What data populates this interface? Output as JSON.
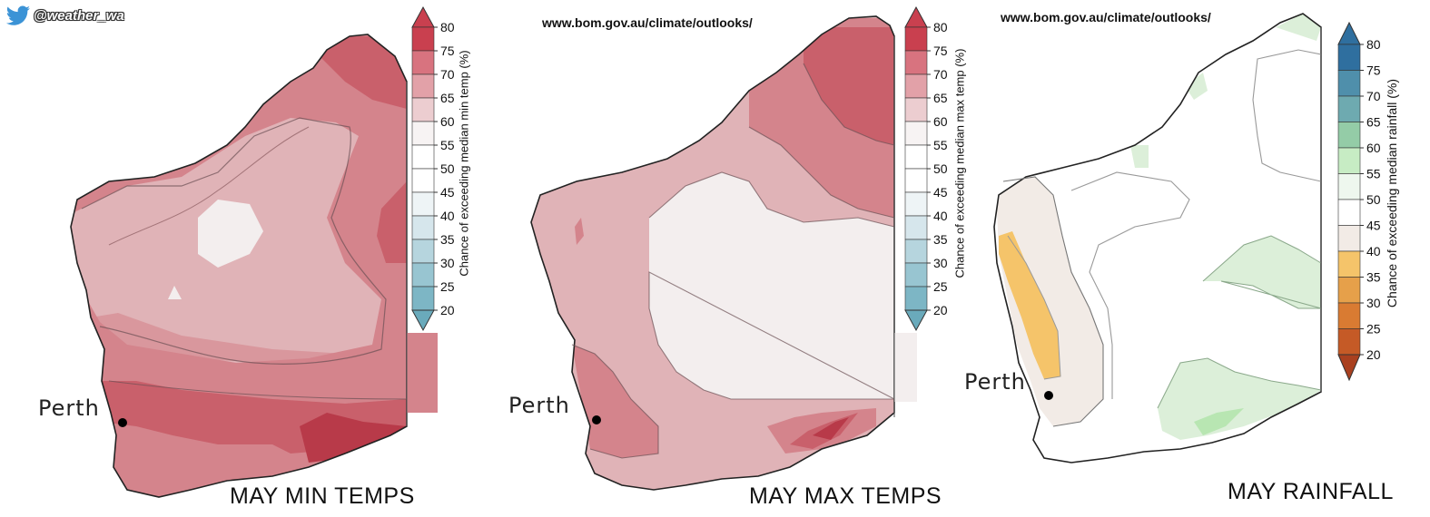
{
  "handle": {
    "text": "@weather_wa",
    "icon": "bird-icon"
  },
  "legend_ticks": [
    "80",
    "75",
    "70",
    "65",
    "60",
    "55",
    "50",
    "45",
    "40",
    "35",
    "30",
    "25",
    "20"
  ],
  "panels": [
    {
      "id": "min",
      "title": "MAY MIN TEMPS",
      "url": "",
      "legend_label": "Chance of exceeding median min temp (%)",
      "place": "Perth",
      "legend_colors": [
        "#c9404f",
        "#d8737f",
        "#e2a1a8",
        "#eccdd0",
        "#f7f3f3",
        "#ffffff",
        "#ffffff",
        "#eef4f6",
        "#d6e6ec",
        "#b6d5de",
        "#98c5d1",
        "#7db6c5",
        "#6aaabb"
      ]
    },
    {
      "id": "max",
      "title": "MAY MAX TEMPS",
      "url": "www.bom.gov.au/climate/outlooks/",
      "legend_label": "Chance of exceeding median max temp (%)",
      "place": "Perth",
      "legend_colors": [
        "#c9404f",
        "#d8737f",
        "#e2a1a8",
        "#eccdd0",
        "#f7f3f3",
        "#ffffff",
        "#ffffff",
        "#eef4f6",
        "#d6e6ec",
        "#b6d5de",
        "#98c5d1",
        "#7db6c5",
        "#6aaabb"
      ]
    },
    {
      "id": "rain",
      "title": "MAY RAINFALL",
      "url": "www.bom.gov.au/climate/outlooks/",
      "legend_label": "Chance of exceeding median rainfall (%)",
      "place": "Perth",
      "legend_colors": [
        "#2f6f9f",
        "#4f8fab",
        "#6eaab0",
        "#94cca7",
        "#c7ecc4",
        "#eef7ee",
        "#ffffff",
        "#f2ebe6",
        "#f5c46a",
        "#e6a04a",
        "#d97b32",
        "#c55a26",
        "#a9401f"
      ]
    }
  ],
  "colors": {
    "red_75": "#c9606b",
    "red_70": "#d4848c",
    "red_65": "#e0b3b7",
    "neutral": "#f3eeee",
    "dark_red": "#b83a49",
    "rain_green": "#dcefd9",
    "rain_light_green": "#b8e6b2",
    "rain_beige": "#f2ebe6",
    "rain_orange": "#f5c46a"
  }
}
